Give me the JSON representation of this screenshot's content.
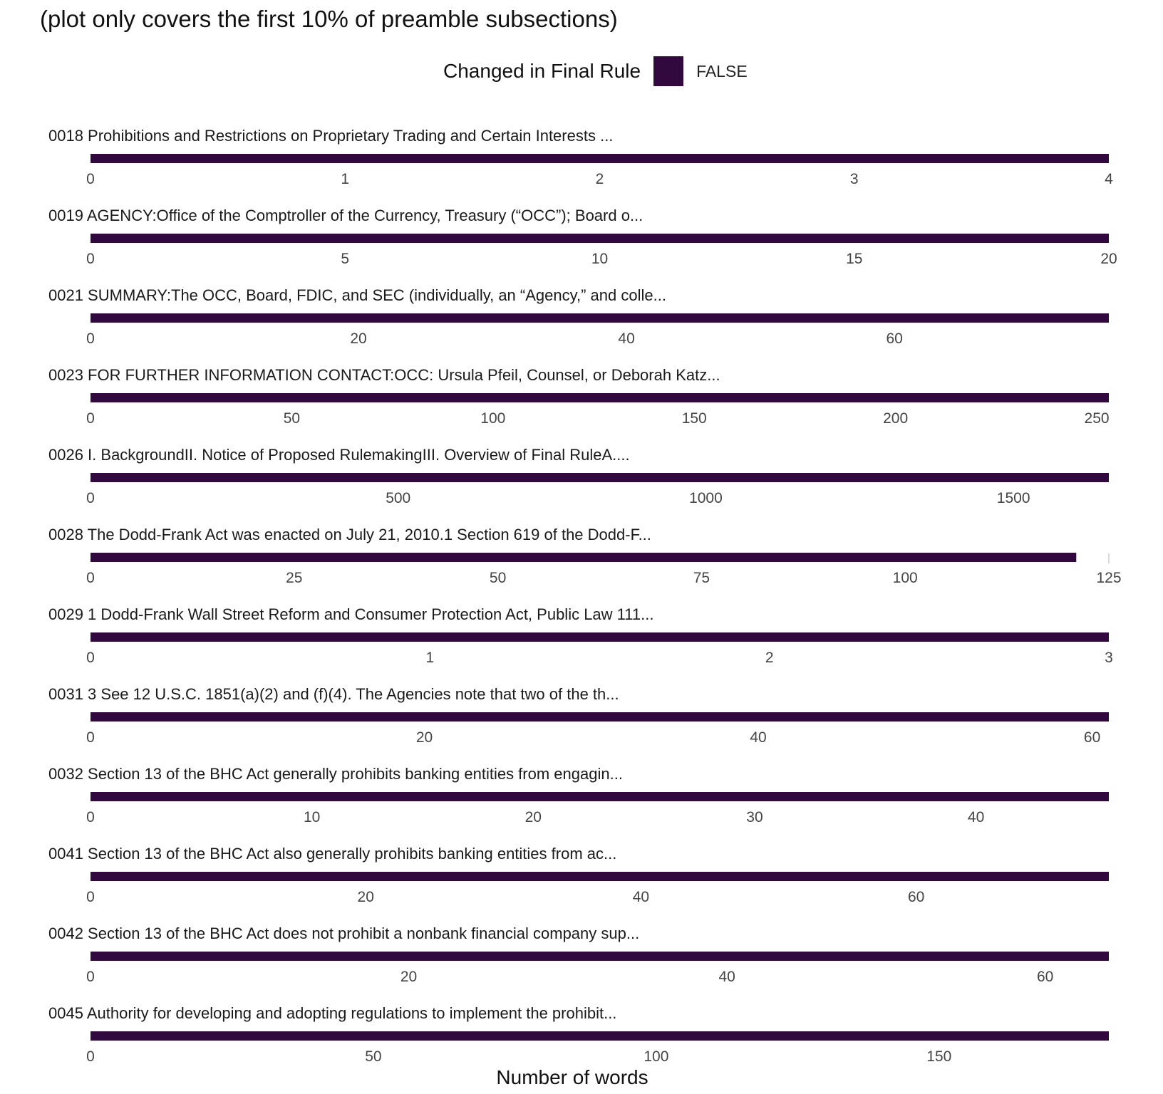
{
  "title": "(plot only covers the first 10% of preamble subsections)",
  "legend": {
    "title": "Changed in Final Rule",
    "entries": [
      {
        "label": "FALSE",
        "color": "#32093f"
      }
    ]
  },
  "chart_data": {
    "type": "bar",
    "orientation": "horizontal",
    "facets": "one facet per subsection, each with its own x scale",
    "xlabel": "Number of words",
    "grid": false,
    "bar_color": "#32093f",
    "panels": [
      {
        "label": "0018 Prohibitions and Restrictions on Proprietary Trading and Certain Interests ...",
        "value": 4,
        "xmax": 4,
        "ticks": [
          0,
          1,
          2,
          3,
          4
        ]
      },
      {
        "label": "0019 AGENCY:Office of the Comptroller of the Currency, Treasury (“OCC”); Board o...",
        "value": 20,
        "xmax": 20,
        "ticks": [
          0,
          5,
          10,
          15,
          20
        ]
      },
      {
        "label": "0021 SUMMARY:The OCC, Board, FDIC, and SEC (individually, an “Agency,” and colle...",
        "value": 76,
        "xmax": 76,
        "ticks": [
          0,
          20,
          40,
          60
        ]
      },
      {
        "label": "0023 FOR FURTHER INFORMATION CONTACT:OCC: Ursula Pfeil, Counsel, or Deborah Katz...",
        "value": 253,
        "xmax": 253,
        "ticks": [
          0,
          50,
          100,
          150,
          200,
          250
        ]
      },
      {
        "label": "0026 I. BackgroundII. Notice of Proposed RulemakingIII. Overview of Final RuleA....",
        "value": 1655,
        "xmax": 1655,
        "ticks": [
          0,
          500,
          1000,
          1500
        ]
      },
      {
        "label": "0028 The Dodd-Frank Act was enacted on July 21, 2010.1 Section 619 of the Dodd-F...",
        "value": 121,
        "xmax": 125,
        "ticks": [
          0,
          25,
          50,
          75,
          100,
          125
        ]
      },
      {
        "label": "0029 1 Dodd-Frank Wall Street Reform and Consumer Protection Act, Public Law 111...",
        "value": 3,
        "xmax": 3,
        "ticks": [
          0,
          1,
          2,
          3
        ]
      },
      {
        "label": "0031 3 See 12 U.S.C. 1851(a)(2) and (f)(4). The Agencies note that two of the th...",
        "value": 61,
        "xmax": 61,
        "ticks": [
          0,
          20,
          40,
          60
        ]
      },
      {
        "label": "0032 Section 13 of the BHC Act generally prohibits banking entities from engagin...",
        "value": 46,
        "xmax": 46,
        "ticks": [
          0,
          10,
          20,
          30,
          40
        ]
      },
      {
        "label": "0041 Section 13 of the BHC Act also generally prohibits banking entities from ac...",
        "value": 74,
        "xmax": 74,
        "ticks": [
          0,
          20,
          40,
          60
        ]
      },
      {
        "label": "0042 Section 13 of the BHC Act does not prohibit a nonbank financial company sup...",
        "value": 64,
        "xmax": 64,
        "ticks": [
          0,
          20,
          40,
          60
        ]
      },
      {
        "label": "0045 Authority for developing and adopting regulations to implement the prohibit...",
        "value": 180,
        "xmax": 180,
        "ticks": [
          0,
          50,
          100,
          150
        ]
      }
    ]
  }
}
